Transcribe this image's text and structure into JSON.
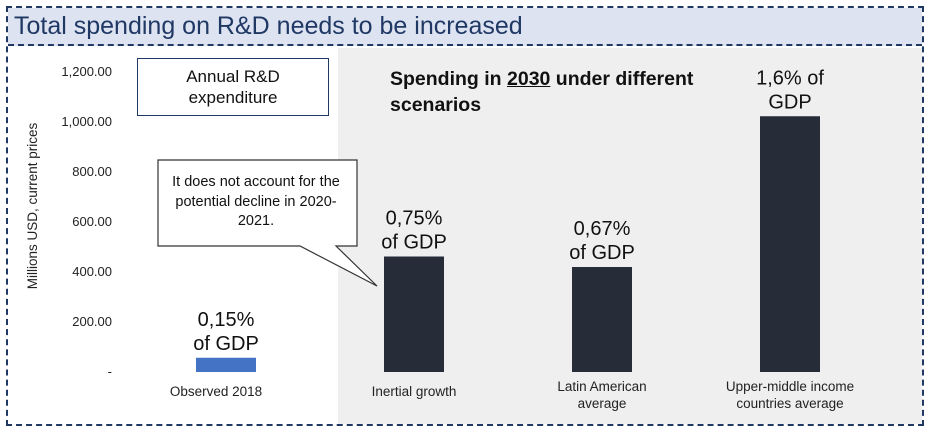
{
  "title": "Total spending on R&D needs to be increased",
  "legend_box": "Annual R&D expenditure",
  "scenario_header": {
    "before": "Spending in ",
    "year": "2030",
    "after": " under different scenarios"
  },
  "callout": "It does not account for the potential decline in 2020-2021.",
  "colors": {
    "observed": "#4472c4",
    "scenario": "#262c38",
    "title_bg": "#dde3f1",
    "title_text": "#1f3864",
    "shade": "#efefef"
  },
  "chart_data": {
    "type": "bar",
    "ylabel": "Millions USD, current prices",
    "ylim": [
      0,
      1200
    ],
    "ytick_labels": [
      "-",
      "200.00",
      "400.00",
      "600.00",
      "800.00",
      "1,000.00",
      "1,200.00"
    ],
    "ytick_values": [
      0,
      200,
      400,
      600,
      800,
      1000,
      1200
    ],
    "categories": [
      [
        "Observed 2018"
      ],
      [
        "Inertial growth"
      ],
      [
        "Latin American",
        "average"
      ],
      [
        "Upper-middle income",
        "countries average"
      ]
    ],
    "values": [
      57,
      462,
      420,
      1023
    ],
    "bar_labels": [
      [
        "0,15%",
        "of GDP"
      ],
      [
        "0,75%",
        "of GDP"
      ],
      [
        "0,67%",
        "of GDP"
      ],
      [
        "1,6% of",
        "GDP"
      ]
    ]
  }
}
